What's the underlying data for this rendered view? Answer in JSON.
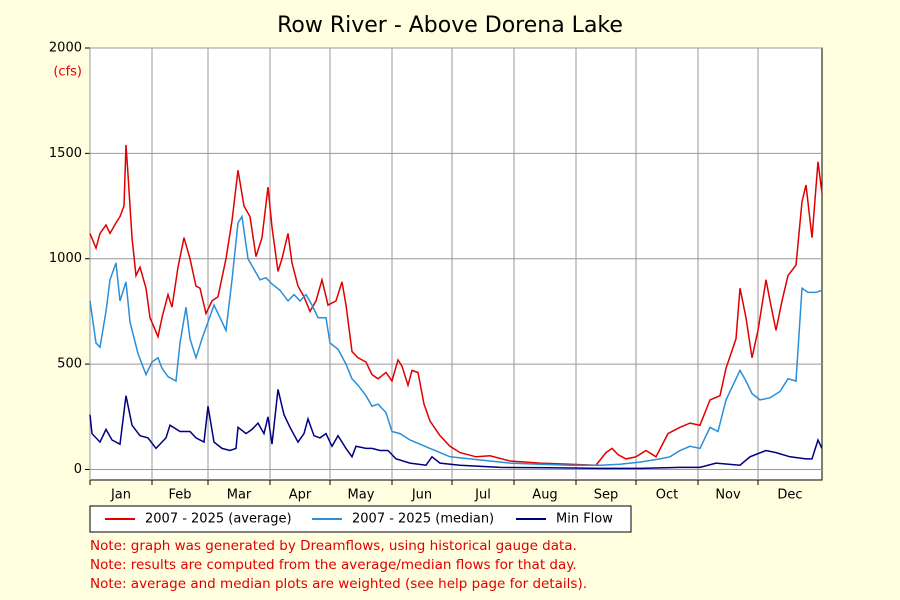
{
  "chart_data": {
    "type": "line",
    "title": "Row River - Above Dorena Lake",
    "y_unit": "(cfs)",
    "xlim": [
      1,
      367
    ],
    "ylim": [
      -50,
      2000
    ],
    "xticks": [
      {
        "value": 1,
        "label": "Jan"
      },
      {
        "value": 32,
        "label": "Feb"
      },
      {
        "value": 60,
        "label": "Mar"
      },
      {
        "value": 91,
        "label": "Apr"
      },
      {
        "value": 121,
        "label": "May"
      },
      {
        "value": 152,
        "label": "Jun"
      },
      {
        "value": 182,
        "label": "Jul"
      },
      {
        "value": 213,
        "label": "Aug"
      },
      {
        "value": 244,
        "label": "Sep"
      },
      {
        "value": 274,
        "label": "Oct"
      },
      {
        "value": 305,
        "label": "Nov"
      },
      {
        "value": 335,
        "label": "Dec"
      }
    ],
    "yticks": [
      0,
      500,
      1000,
      1500,
      2000
    ],
    "grid": true,
    "series": [
      {
        "name": "2007 - 2025 (average)",
        "color": "#e00000",
        "x": [
          1,
          4,
          6,
          9,
          11,
          14,
          16,
          18,
          19,
          20,
          22,
          24,
          26,
          29,
          31,
          35,
          37,
          40,
          42,
          45,
          48,
          51,
          54,
          56,
          59,
          62,
          65,
          69,
          72,
          75,
          78,
          81,
          84,
          87,
          90,
          92,
          95,
          97,
          100,
          102,
          105,
          108,
          111,
          114,
          117,
          120,
          124,
          127,
          129,
          132,
          135,
          139,
          142,
          145,
          149,
          152,
          155,
          157,
          160,
          162,
          165,
          168,
          171,
          176,
          181,
          186,
          194,
          201,
          211,
          226,
          241,
          254,
          259,
          262,
          265,
          269,
          274,
          279,
          284,
          290,
          296,
          301,
          306,
          311,
          316,
          319,
          324,
          326,
          329,
          332,
          335,
          339,
          341,
          344,
          347,
          350,
          354,
          357,
          359,
          362,
          365,
          367
        ],
        "values": [
          1120,
          1050,
          1120,
          1160,
          1120,
          1170,
          1200,
          1250,
          1540,
          1400,
          1100,
          920,
          960,
          860,
          720,
          630,
          720,
          830,
          770,
          960,
          1100,
          1000,
          870,
          860,
          740,
          800,
          820,
          1000,
          1180,
          1420,
          1250,
          1200,
          1010,
          1100,
          1340,
          1150,
          940,
          1000,
          1120,
          980,
          870,
          820,
          750,
          800,
          900,
          780,
          800,
          890,
          780,
          560,
          530,
          510,
          450,
          430,
          460,
          420,
          520,
          490,
          400,
          470,
          460,
          310,
          230,
          160,
          110,
          80,
          60,
          65,
          40,
          30,
          25,
          20,
          80,
          100,
          70,
          50,
          60,
          90,
          60,
          170,
          200,
          220,
          210,
          330,
          350,
          480,
          620,
          860,
          720,
          530,
          660,
          900,
          800,
          660,
          800,
          920,
          970,
          1270,
          1350,
          1100,
          1460,
          1310
        ]
      },
      {
        "name": "2007 - 2025 (median)",
        "color": "#2a8fd8",
        "x": [
          1,
          4,
          6,
          9,
          11,
          14,
          16,
          19,
          21,
          25,
          29,
          32,
          35,
          37,
          40,
          44,
          46,
          49,
          51,
          54,
          57,
          60,
          63,
          66,
          69,
          72,
          75,
          77,
          80,
          83,
          86,
          89,
          92,
          96,
          100,
          103,
          106,
          109,
          112,
          115,
          119,
          121,
          125,
          129,
          132,
          135,
          139,
          142,
          145,
          149,
          152,
          156,
          161,
          166,
          171,
          176,
          181,
          191,
          201,
          211,
          226,
          241,
          256,
          266,
          276,
          286,
          291,
          296,
          301,
          306,
          311,
          315,
          319,
          324,
          326,
          329,
          332,
          336,
          341,
          346,
          350,
          354,
          357,
          360,
          364,
          367
        ],
        "values": [
          800,
          600,
          580,
          750,
          900,
          980,
          800,
          890,
          700,
          550,
          450,
          510,
          530,
          480,
          440,
          420,
          600,
          770,
          620,
          530,
          620,
          700,
          780,
          720,
          660,
          900,
          1170,
          1200,
          1000,
          950,
          900,
          910,
          880,
          850,
          800,
          830,
          800,
          830,
          780,
          720,
          720,
          600,
          570,
          500,
          430,
          400,
          350,
          300,
          310,
          270,
          180,
          170,
          140,
          120,
          100,
          80,
          60,
          50,
          40,
          30,
          25,
          20,
          20,
          25,
          35,
          50,
          60,
          90,
          110,
          100,
          200,
          180,
          330,
          430,
          470,
          420,
          360,
          330,
          340,
          370,
          430,
          420,
          860,
          840,
          840,
          850
        ]
      },
      {
        "name": "Min Flow",
        "color": "#000080",
        "x": [
          1,
          2,
          6,
          9,
          12,
          16,
          19,
          22,
          26,
          30,
          34,
          39,
          41,
          46,
          51,
          54,
          58,
          60,
          63,
          67,
          71,
          74,
          75,
          79,
          82,
          85,
          88,
          90,
          92,
          95,
          98,
          101,
          105,
          108,
          110,
          113,
          116,
          119,
          122,
          125,
          129,
          132,
          134,
          139,
          142,
          146,
          150,
          154,
          161,
          169,
          172,
          176,
          186,
          206,
          231,
          256,
          276,
          296,
          306,
          314,
          326,
          331,
          339,
          344,
          351,
          359,
          362,
          365,
          367
        ],
        "values": [
          260,
          170,
          130,
          190,
          140,
          120,
          350,
          210,
          160,
          150,
          100,
          150,
          210,
          180,
          180,
          150,
          130,
          300,
          130,
          100,
          90,
          100,
          200,
          170,
          190,
          220,
          170,
          250,
          120,
          380,
          260,
          200,
          130,
          170,
          240,
          160,
          150,
          170,
          110,
          160,
          100,
          60,
          110,
          100,
          100,
          90,
          90,
          50,
          30,
          20,
          60,
          30,
          20,
          10,
          8,
          5,
          5,
          10,
          10,
          30,
          20,
          60,
          90,
          80,
          60,
          50,
          50,
          140,
          100
        ]
      }
    ],
    "notes": [
      "Note: graph was generated by Dreamflows, using historical gauge data.",
      "Note: results are computed from the average/median flows for that day.",
      "Note: average and median plots are weighted (see help page for details)."
    ]
  }
}
